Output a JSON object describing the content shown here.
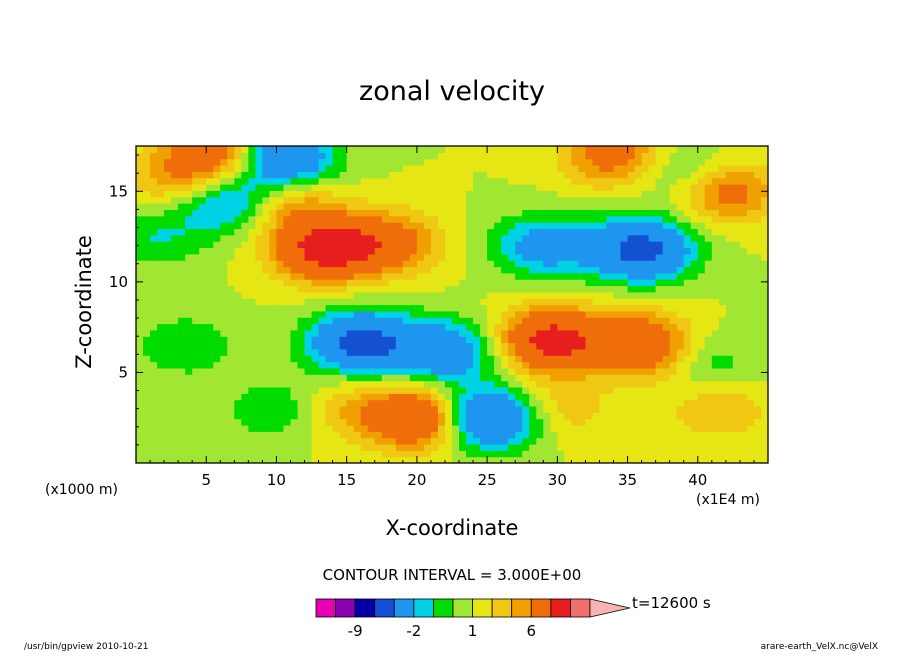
{
  "chart_data": {
    "type": "heatmap",
    "title": "zonal velocity",
    "xlabel": "X-coordinate",
    "ylabel": "Z-coordinate",
    "x_unit": "(x1E4 m)",
    "y_unit": "(x1000 m)",
    "x_ticks": [
      5,
      10,
      15,
      20,
      25,
      30,
      35,
      40
    ],
    "y_ticks": [
      5,
      10,
      15
    ],
    "xlim": [
      0,
      45
    ],
    "ylim": [
      0,
      17.5
    ],
    "contour_interval_text": "CONTOUR INTERVAL = 3.000E+00",
    "time_text": "t=12600 s",
    "colorbar": {
      "labels": [
        {
          "text": "-9",
          "value": -9
        },
        {
          "text": "-2",
          "value": -2
        },
        {
          "text": "1",
          "value": 1
        },
        {
          "text": "6",
          "value": 6
        }
      ],
      "levels": [
        -15,
        -12,
        -9,
        -6,
        -3,
        -2,
        -1,
        0,
        1,
        2,
        3,
        6,
        9,
        12,
        15
      ],
      "colors": [
        "#e600b4",
        "#8c00b4",
        "#0000aa",
        "#1450d2",
        "#1e96f0",
        "#00d2e6",
        "#00dc00",
        "#a0e632",
        "#e6e614",
        "#f0c814",
        "#f0a000",
        "#f06e0a",
        "#e61e1e",
        "#f06e6e",
        "#f5b4b4"
      ]
    },
    "field_features": [
      {
        "x": 13.5,
        "z": 11.8,
        "value": 7
      },
      {
        "x": 18,
        "z": 12.2,
        "value": 4
      },
      {
        "x": 36,
        "z": 11.8,
        "value": -7
      },
      {
        "x": 29,
        "z": 12,
        "value": -4
      },
      {
        "x": 16,
        "z": 6.7,
        "value": -7
      },
      {
        "x": 22,
        "z": 6.2,
        "value": -5
      },
      {
        "x": 29.5,
        "z": 6.8,
        "value": 7
      },
      {
        "x": 35.5,
        "z": 6.8,
        "value": 4
      },
      {
        "x": 6.5,
        "z": 14.5,
        "value": -4
      },
      {
        "x": 11,
        "z": 14.3,
        "value": 3
      },
      {
        "x": 10.5,
        "z": 16.8,
        "value": -6
      },
      {
        "x": 5.5,
        "z": 17,
        "value": 5
      },
      {
        "x": 42,
        "z": 15,
        "value": 4
      },
      {
        "x": 39,
        "z": 16,
        "value": -2
      },
      {
        "x": 34,
        "z": 17,
        "value": 4
      },
      {
        "x": 2.5,
        "z": 15.5,
        "value": 2
      },
      {
        "x": 1.5,
        "z": 12.5,
        "value": -2
      },
      {
        "x": 3.5,
        "z": 6.5,
        "value": -2
      },
      {
        "x": 10,
        "z": 3,
        "value": -2
      },
      {
        "x": 15,
        "z": 3,
        "value": 2
      },
      {
        "x": 20.5,
        "z": 2.5,
        "value": 7
      },
      {
        "x": 24.2,
        "z": 2.5,
        "value": -6
      },
      {
        "x": 26.5,
        "z": 2.5,
        "value": -2
      },
      {
        "x": 30,
        "z": 3,
        "value": 2
      },
      {
        "x": 37,
        "z": 6,
        "value": 2
      },
      {
        "x": 40.5,
        "z": 5.5,
        "value": -2
      },
      {
        "x": 41.5,
        "z": 3,
        "value": 2
      }
    ]
  },
  "footer": {
    "left": "/usr/bin/gpview 2010-10-21",
    "right": "arare-earth_VelX.nc@VelX"
  }
}
